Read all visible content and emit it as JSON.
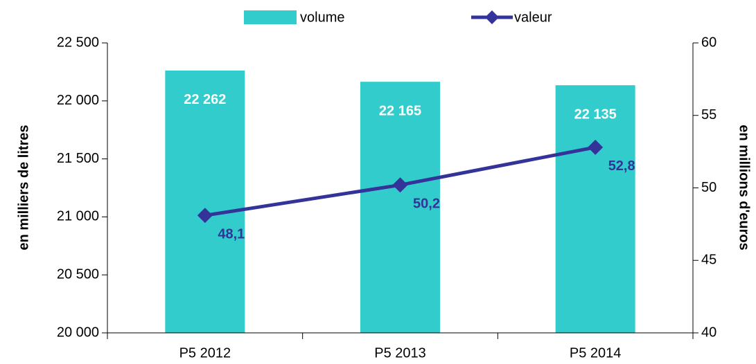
{
  "chart_data": {
    "type": "bar",
    "categories": [
      "P5 2012",
      "P5 2013",
      "P5 2014"
    ],
    "series": [
      {
        "name": "volume",
        "color": "#33cccc",
        "values": [
          22262,
          22165,
          22135
        ],
        "value_labels": [
          "22 262",
          "22 165",
          "22 135"
        ]
      },
      {
        "name": "valeur",
        "type": "line",
        "axis": "y2",
        "color": "#333399",
        "values": [
          48.1,
          50.2,
          52.8
        ],
        "value_labels": [
          "48,1",
          "50,2",
          "52,8"
        ]
      }
    ],
    "ylabel": "en milliers de litres",
    "y2label": "en millions d'euros",
    "ylim": [
      20000,
      22500
    ],
    "yticks": [
      {
        "value": 20000,
        "label": "20 000"
      },
      {
        "value": 20500,
        "label": "20 500"
      },
      {
        "value": 21000,
        "label": "21 000"
      },
      {
        "value": 21500,
        "label": "21 500"
      },
      {
        "value": 22000,
        "label": "22 000"
      },
      {
        "value": 22500,
        "label": "22 500"
      }
    ],
    "y2lim": [
      40,
      60
    ],
    "y2ticks": [
      40,
      45,
      50,
      55,
      60
    ],
    "legend": "top"
  }
}
